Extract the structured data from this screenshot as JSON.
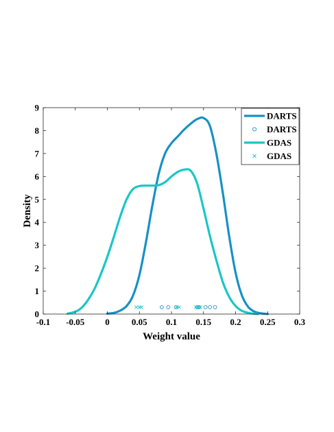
{
  "chart_data": {
    "type": "line",
    "title": "",
    "xlabel": "Weight value",
    "ylabel": "Density",
    "xlim": [
      -0.1,
      0.3
    ],
    "ylim": [
      0,
      9
    ],
    "xticks": [
      -0.1,
      -0.05,
      0,
      0.05,
      0.1,
      0.15,
      0.2,
      0.25,
      0.3
    ],
    "xtick_labels": [
      "-0.1",
      "-0.05",
      "0",
      "0.05",
      "0.1",
      "0.15",
      "0.2",
      "0.25",
      "0.3"
    ],
    "yticks": [
      0,
      1,
      2,
      3,
      4,
      5,
      6,
      7,
      8,
      9
    ],
    "ytick_labels": [
      "0",
      "1",
      "2",
      "3",
      "4",
      "5",
      "6",
      "7",
      "8",
      "9"
    ],
    "grid": false,
    "legend_position": "top-right",
    "series": [
      {
        "name": "DARTS",
        "kind": "line",
        "color": "#1591c6",
        "x": [
          0.0,
          0.01,
          0.02,
          0.03,
          0.04,
          0.05,
          0.06,
          0.07,
          0.08,
          0.09,
          0.1,
          0.11,
          0.12,
          0.13,
          0.14,
          0.15,
          0.16,
          0.17,
          0.18,
          0.19,
          0.2,
          0.21,
          0.22,
          0.23,
          0.24,
          0.25
        ],
        "y": [
          0.02,
          0.05,
          0.15,
          0.35,
          0.8,
          1.7,
          3.1,
          4.7,
          6.1,
          7.0,
          7.45,
          7.75,
          8.05,
          8.3,
          8.5,
          8.55,
          8.2,
          7.0,
          5.3,
          3.4,
          1.8,
          0.8,
          0.3,
          0.1,
          0.03,
          0.0
        ]
      },
      {
        "name": "DARTS",
        "kind": "marker",
        "marker": "o",
        "color": "#1591c6",
        "x": [
          0.085,
          0.095,
          0.107,
          0.14,
          0.143,
          0.153,
          0.16,
          0.168
        ],
        "y": [
          0.3,
          0.3,
          0.3,
          0.3,
          0.3,
          0.3,
          0.3,
          0.3
        ]
      },
      {
        "name": "GDAS",
        "kind": "line",
        "color": "#19c6c6",
        "x": [
          -0.062,
          -0.05,
          -0.04,
          -0.03,
          -0.02,
          -0.01,
          0.0,
          0.01,
          0.02,
          0.03,
          0.04,
          0.05,
          0.06,
          0.07,
          0.08,
          0.09,
          0.1,
          0.11,
          0.12,
          0.13,
          0.14,
          0.15,
          0.16,
          0.17,
          0.18,
          0.19,
          0.2,
          0.21,
          0.22,
          0.23,
          0.235
        ],
        "y": [
          0.02,
          0.1,
          0.28,
          0.62,
          1.1,
          1.75,
          2.5,
          3.35,
          4.25,
          5.0,
          5.45,
          5.58,
          5.6,
          5.6,
          5.62,
          5.75,
          6.0,
          6.2,
          6.3,
          6.25,
          5.7,
          4.6,
          3.4,
          2.35,
          1.4,
          0.75,
          0.35,
          0.14,
          0.05,
          0.01,
          0.0
        ]
      },
      {
        "name": "GDAS",
        "kind": "marker",
        "marker": "x",
        "color": "#19c6c6",
        "x": [
          0.045,
          0.05,
          0.053,
          0.108,
          0.112,
          0.138,
          0.142,
          0.145
        ],
        "y": [
          0.3,
          0.3,
          0.3,
          0.3,
          0.3,
          0.3,
          0.3,
          0.3
        ]
      }
    ]
  }
}
